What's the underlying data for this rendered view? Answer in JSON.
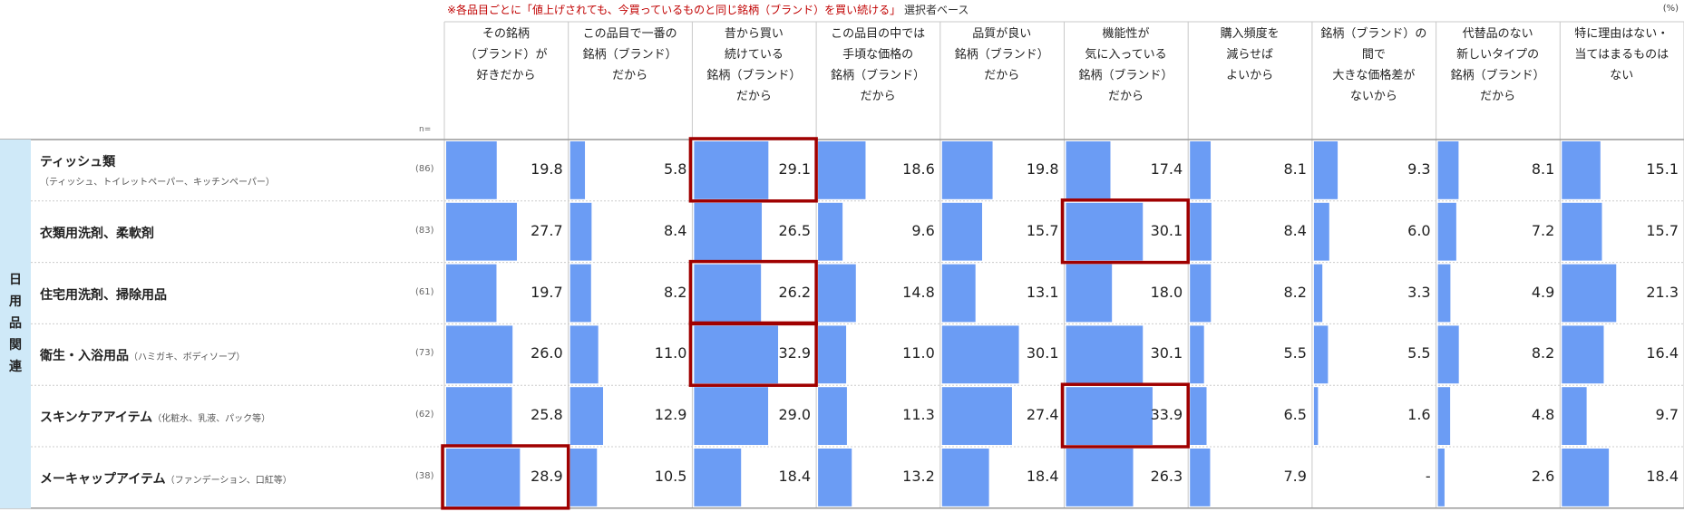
{
  "title": {
    "main": "※各品目ごとに「値上げされても、今買っているものと同じ銘柄（ブランド）を買い続ける」",
    "note": "選択者ベース"
  },
  "unit": "(%)",
  "n_label": "n=",
  "category": "日用品関連",
  "colors": {
    "bar": "#6b9cf4",
    "highlight": "#a00000",
    "category_bg": "#cfe9f8",
    "grid": "#c8c8c8"
  },
  "chart_data": {
    "type": "table",
    "columns": [
      [
        "その銘柄",
        "（ブランド）が",
        "好きだから"
      ],
      [
        "この品目で一番の",
        "銘柄（ブランド）",
        "だから"
      ],
      [
        "昔から買い",
        "続けている",
        "銘柄（ブランド）",
        "だから"
      ],
      [
        "この品目の中では",
        "手頃な価格の",
        "銘柄（ブランド）",
        "だから"
      ],
      [
        "品質が良い",
        "銘柄（ブランド）",
        "だから"
      ],
      [
        "機能性が",
        "気に入っている",
        "銘柄（ブランド）",
        "だから"
      ],
      [
        "購入頻度を",
        "減らせば",
        "よいから"
      ],
      [
        "銘柄（ブランド）の",
        "間で",
        "大きな価格差が",
        "ないから"
      ],
      [
        "代替品のない",
        "新しいタイプの",
        "銘柄（ブランド）",
        "だから"
      ],
      [
        "特に理由はない・",
        "当てはまるものは",
        "ない"
      ]
    ],
    "rows": [
      {
        "label": "ティッシュ類",
        "sub": "",
        "sub2": "（ティッシュ、トイレットペーパー、キッチンペーパー）",
        "n": "(86)",
        "values": [
          "19.8",
          "5.8",
          "29.1",
          "18.6",
          "19.8",
          "17.4",
          "8.1",
          "9.3",
          "8.1",
          "15.1"
        ],
        "highlight": [
          2
        ]
      },
      {
        "label": "衣類用洗剤、柔軟剤",
        "sub": "",
        "sub2": "",
        "n": "(83)",
        "values": [
          "27.7",
          "8.4",
          "26.5",
          "9.6",
          "15.7",
          "30.1",
          "8.4",
          "6.0",
          "7.2",
          "15.7"
        ],
        "highlight": [
          5
        ]
      },
      {
        "label": "住宅用洗剤、掃除用品",
        "sub": "",
        "sub2": "",
        "n": "(61)",
        "values": [
          "19.7",
          "8.2",
          "26.2",
          "14.8",
          "13.1",
          "18.0",
          "8.2",
          "3.3",
          "4.9",
          "21.3"
        ],
        "highlight": [
          2
        ]
      },
      {
        "label": "衛生・入浴用品",
        "sub": "（ハミガキ、ボディソープ）",
        "sub2": "",
        "n": "(73)",
        "values": [
          "26.0",
          "11.0",
          "32.9",
          "11.0",
          "30.1",
          "30.1",
          "5.5",
          "5.5",
          "8.2",
          "16.4"
        ],
        "highlight": [
          2
        ]
      },
      {
        "label": "スキンケアアイテム",
        "sub": "（化粧水、乳液、パック等）",
        "sub2": "",
        "n": "(62)",
        "values": [
          "25.8",
          "12.9",
          "29.0",
          "11.3",
          "27.4",
          "33.9",
          "6.5",
          "1.6",
          "4.8",
          "9.7"
        ],
        "highlight": [
          5
        ]
      },
      {
        "label": "メーキャップアイテム",
        "sub": "（ファンデーション、口紅等）",
        "sub2": "",
        "n": "(38)",
        "values": [
          "28.9",
          "10.5",
          "18.4",
          "13.2",
          "18.4",
          "26.3",
          "7.9",
          "-",
          "2.6",
          "18.4"
        ],
        "highlight": [
          0
        ]
      }
    ]
  }
}
